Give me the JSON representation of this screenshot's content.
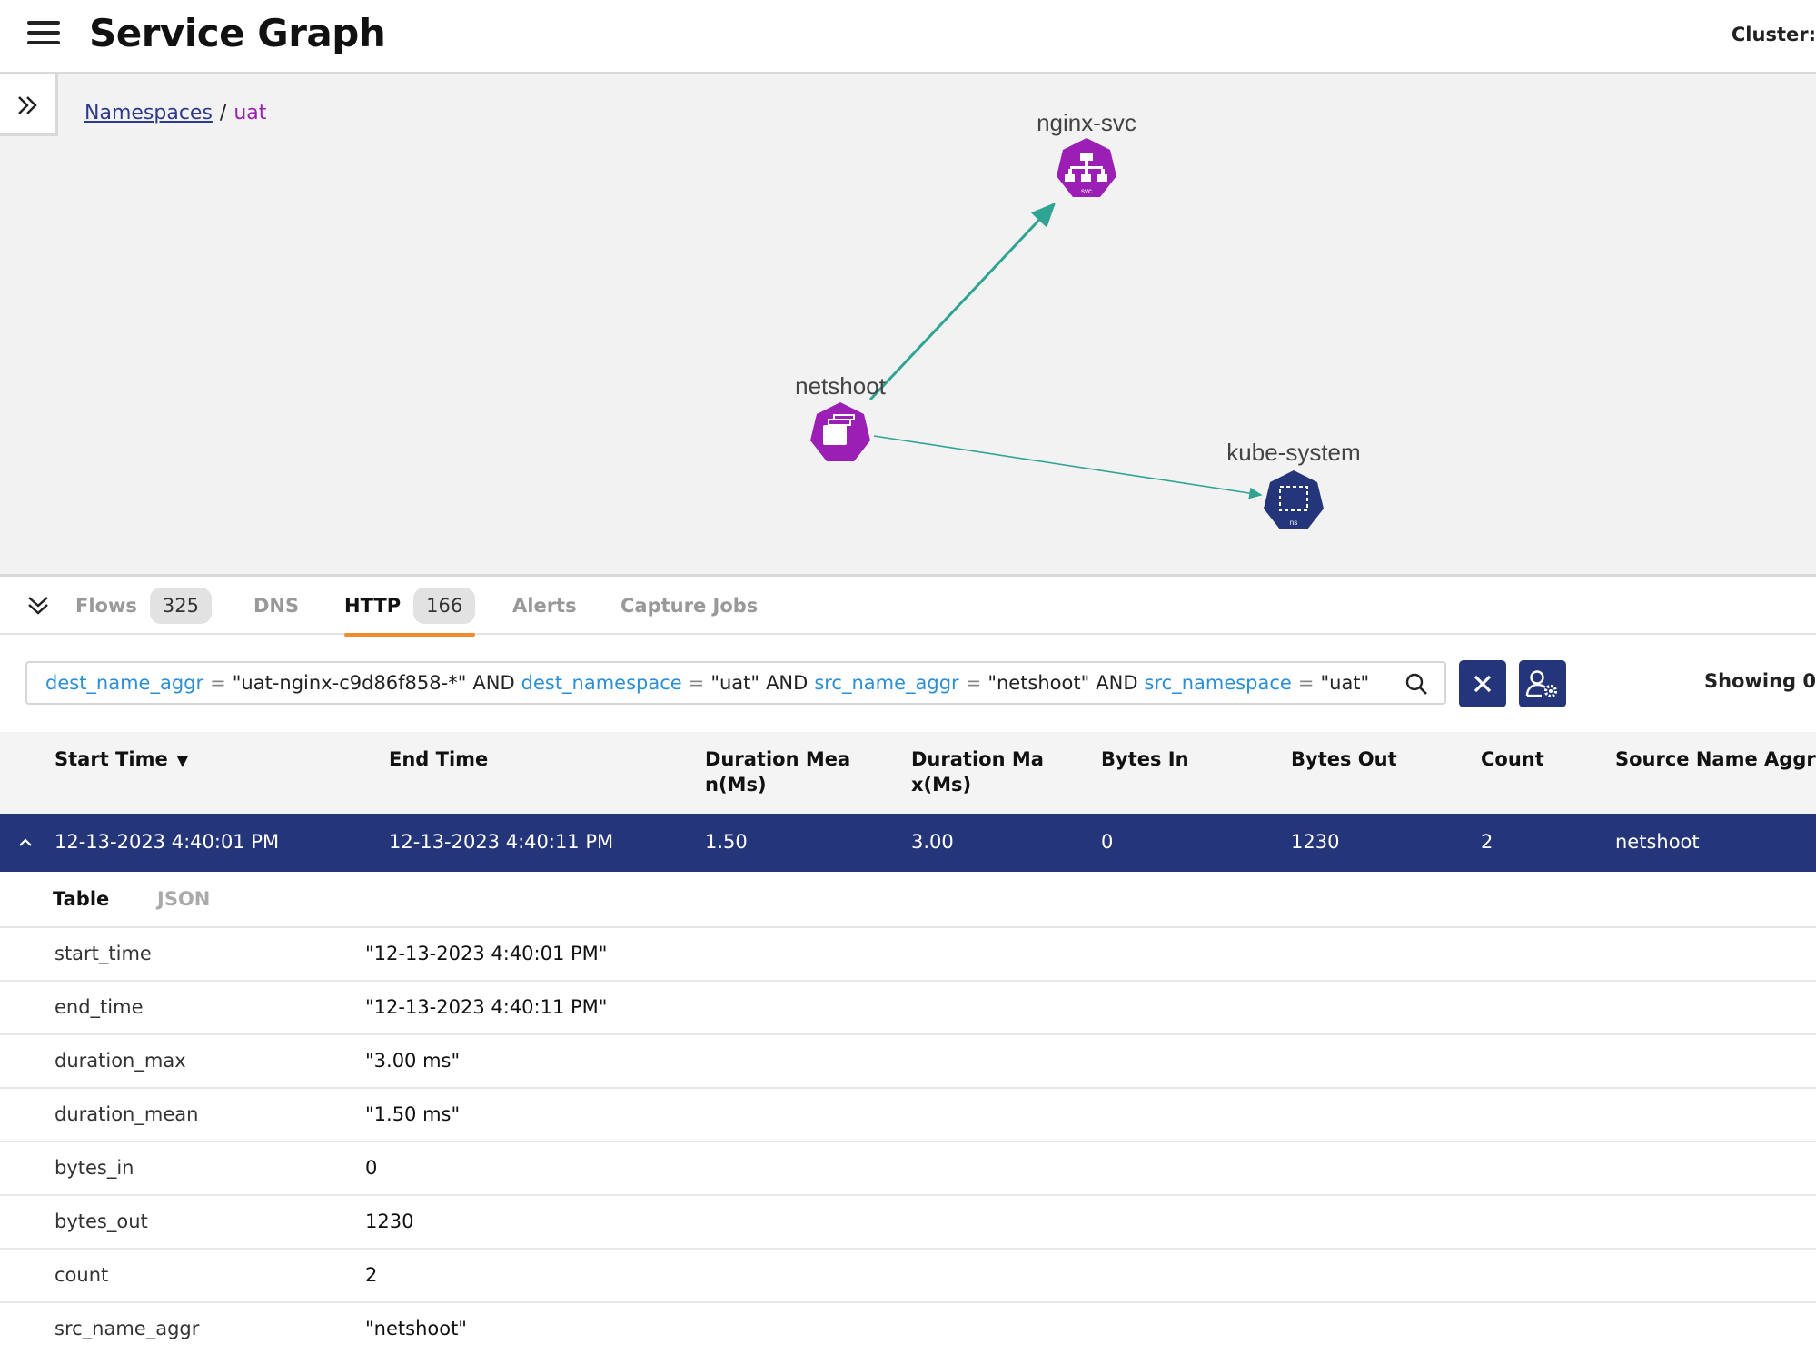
{
  "header": {
    "title": "Service Graph",
    "cluster_label": "Cluster:"
  },
  "breadcrumb": {
    "root": "Namespaces",
    "separator": "/",
    "current": "uat"
  },
  "graph": {
    "nodes": [
      {
        "name": "nginx-svc",
        "badge": "svc",
        "color": "#9b1fb5",
        "icon": "service-icon"
      },
      {
        "name": "netshoot",
        "badge": "",
        "color": "#9b1fb5",
        "icon": "pod-icon"
      },
      {
        "name": "kube-system",
        "badge": "ns",
        "color": "#25357a",
        "icon": "namespace-icon"
      }
    ],
    "edges": [
      {
        "from": "netshoot",
        "to": "nginx-svc",
        "color": "#2fa493"
      },
      {
        "from": "netshoot",
        "to": "kube-system",
        "color": "#2fa493"
      }
    ]
  },
  "tabs": [
    {
      "label": "Flows",
      "count": "325",
      "active": false
    },
    {
      "label": "DNS",
      "count": "",
      "active": false
    },
    {
      "label": "HTTP",
      "count": "166",
      "active": true
    },
    {
      "label": "Alerts",
      "count": "",
      "active": false
    },
    {
      "label": "Capture Jobs",
      "count": "",
      "active": false
    }
  ],
  "filter": {
    "terms": [
      {
        "key": "dest_name_aggr",
        "op": "=",
        "value": "\"uat-nginx-c9d86f858-*\""
      },
      {
        "key": "dest_namespace",
        "op": "=",
        "value": "\"uat\""
      },
      {
        "key": "src_name_aggr",
        "op": "=",
        "value": "\"netshoot\""
      },
      {
        "key": "src_namespace",
        "op": "=",
        "value": "\"uat\""
      }
    ],
    "joiner": "AND",
    "showing": "Showing 0"
  },
  "table": {
    "columns": [
      "Start Time",
      "End Time",
      "Duration Mea n(Ms)",
      "Duration Ma x(Ms)",
      "Bytes In",
      "Bytes Out",
      "Count",
      "Source Name Aggr"
    ],
    "columns_wrapped": [
      [
        "Start Time"
      ],
      [
        "End Time"
      ],
      [
        "Duration Mea",
        "n(Ms)"
      ],
      [
        "Duration Ma",
        "x(Ms)"
      ],
      [
        "Bytes In"
      ],
      [
        "Bytes Out"
      ],
      [
        "Count"
      ],
      [
        "Source Name Aggr"
      ]
    ],
    "sort_indicator": "▼",
    "selected_row": [
      "12-13-2023 4:40:01 PM",
      "12-13-2023 4:40:11 PM",
      "1.50",
      "3.00",
      "0",
      "1230",
      "2",
      "netshoot"
    ]
  },
  "detail": {
    "tabs": [
      "Table",
      "JSON"
    ],
    "rows": [
      {
        "key": "start_time",
        "value": "\"12-13-2023 4:40:01 PM\""
      },
      {
        "key": "end_time",
        "value": "\"12-13-2023 4:40:11 PM\""
      },
      {
        "key": "duration_max",
        "value": "\"3.00 ms\""
      },
      {
        "key": "duration_mean",
        "value": "\"1.50 ms\""
      },
      {
        "key": "bytes_in",
        "value": "0"
      },
      {
        "key": "bytes_out",
        "value": "1230"
      },
      {
        "key": "count",
        "value": "2"
      },
      {
        "key": "src_name_aggr",
        "value": "\"netshoot\""
      }
    ]
  }
}
